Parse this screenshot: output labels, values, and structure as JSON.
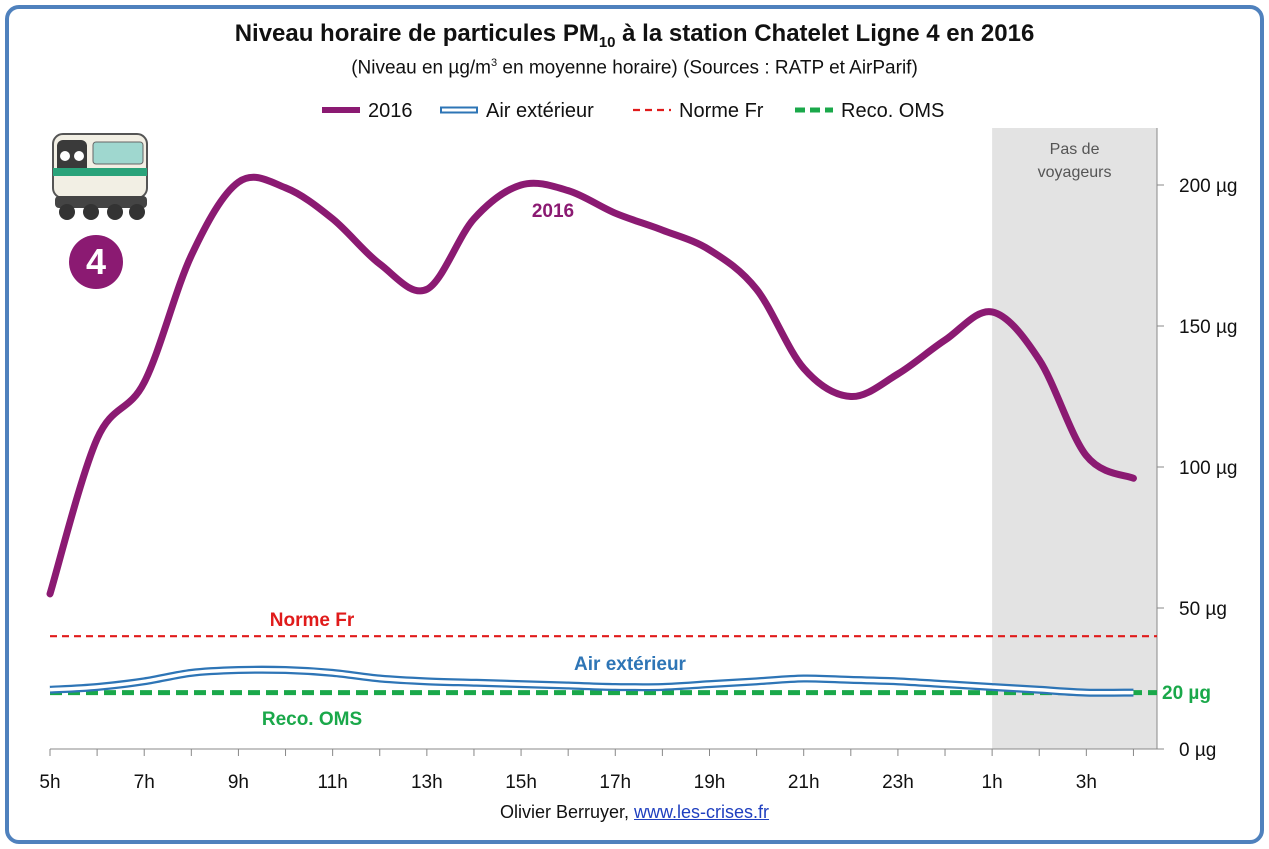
{
  "title_main": "Niveau horaire de particules PM",
  "title_sub": "10",
  "title_rest": " à la station Chatelet Ligne 4 en 2016",
  "subtitle_pre": "(Niveau en µg/m",
  "subtitle_sup": "3",
  "subtitle_post": "  en moyenne horaire) (Sources : RATP et AirParif)",
  "credit_name": "Olivier Berruyer,",
  "credit_link": "www.les-crises.fr",
  "badge": "4",
  "shade_label_1": "Pas de",
  "shade_label_2": "voyageurs",
  "colors": {
    "s2016": "#8b1a72",
    "air": "#2e75b6",
    "norme": "#e01b1b",
    "oms": "#1aa84a",
    "shade": "#e3e3e3",
    "frame": "#4f81bd"
  },
  "chart_data": {
    "type": "line",
    "x_ticks": [
      "5h",
      "7h",
      "9h",
      "11h",
      "13h",
      "15h",
      "17h",
      "19h",
      "21h",
      "23h",
      "1h",
      "3h"
    ],
    "y_ticks": [
      "0 µg",
      "50 µg",
      "100 µg",
      "150 µg",
      "200 µg"
    ],
    "ylim": [
      0,
      220
    ],
    "x_hours": [
      5,
      6,
      7,
      8,
      9,
      10,
      11,
      12,
      13,
      14,
      15,
      16,
      17,
      18,
      19,
      20,
      21,
      22,
      23,
      24,
      25,
      26,
      27,
      28
    ],
    "shaded_region": {
      "from": 25,
      "to": 28,
      "label": "Pas de voyageurs"
    },
    "series": [
      {
        "name": "2016",
        "style": "thick-solid",
        "values": [
          55,
          110,
          130,
          175,
          201,
          199,
          188,
          172,
          163,
          188,
          200,
          198,
          190,
          184,
          177,
          163,
          135,
          125,
          133,
          145,
          155,
          138,
          104,
          96
        ]
      },
      {
        "name": "Air extérieur",
        "style": "double-line",
        "values": [
          21,
          22,
          24,
          27,
          28,
          28,
          27,
          25,
          24,
          23.5,
          23,
          22.5,
          22,
          22,
          23,
          24,
          25,
          24.5,
          24,
          23,
          22,
          21,
          20,
          20
        ]
      },
      {
        "name": "Norme Fr",
        "style": "dashed-thin",
        "constant": 40
      },
      {
        "name": "Reco. OMS",
        "style": "dashed-thick",
        "constant": 20
      }
    ],
    "annotations": [
      {
        "text": "2016",
        "series": "2016"
      },
      {
        "text": "Norme Fr",
        "series": "Norme Fr"
      },
      {
        "text": "Air extérieur",
        "series": "Air extérieur"
      },
      {
        "text": "Reco. OMS",
        "series": "Reco. OMS"
      },
      {
        "text": "20 µg",
        "series": "Reco. OMS"
      }
    ],
    "legend": "top"
  }
}
